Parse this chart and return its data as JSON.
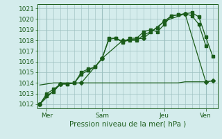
{
  "xlabel": "Pression niveau de la mer( hPa )",
  "bg_color": "#d4ecec",
  "grid_color": "#9bbfbf",
  "line_color": "#1a5c1a",
  "text_color": "#1a5c1a",
  "ylim": [
    1011.6,
    1021.4
  ],
  "xlim": [
    -0.3,
    25.7
  ],
  "day_labels": [
    "Mer",
    "Sam",
    "Jeu",
    "Ven"
  ],
  "day_positions": [
    1,
    9,
    18,
    24
  ],
  "series1_x": [
    0,
    1,
    2,
    3,
    4,
    5,
    6,
    7,
    8,
    9,
    10,
    11,
    12,
    13,
    14,
    15,
    16,
    17,
    18,
    19,
    20,
    21,
    22,
    23,
    24
  ],
  "series1_y": [
    1012.0,
    1012.8,
    1013.2,
    1013.9,
    1013.9,
    1014.0,
    1015.0,
    1015.3,
    1015.5,
    1016.3,
    1018.2,
    1018.2,
    1017.8,
    1018.2,
    1018.2,
    1018.8,
    1019.0,
    1018.8,
    1019.5,
    1020.3,
    1020.4,
    1020.5,
    1020.3,
    1019.5,
    1017.5
  ],
  "series2_x": [
    0,
    1,
    2,
    3,
    4,
    5,
    6,
    7,
    8,
    9,
    10,
    11,
    12,
    13,
    14,
    15,
    16,
    17,
    18,
    19,
    20,
    21,
    22,
    23,
    24,
    25
  ],
  "series2_y": [
    1012.0,
    1013.0,
    1013.4,
    1013.9,
    1013.9,
    1014.0,
    1014.8,
    1015.2,
    1015.5,
    1016.3,
    1018.1,
    1018.2,
    1017.9,
    1018.0,
    1018.0,
    1018.5,
    1018.8,
    1019.2,
    1019.8,
    1020.3,
    1020.4,
    1020.5,
    1020.6,
    1020.2,
    1018.3,
    1016.5
  ],
  "series3_x": [
    0,
    3,
    6,
    9,
    12,
    15,
    18,
    21,
    24,
    25
  ],
  "series3_y": [
    1012.0,
    1013.9,
    1014.0,
    1016.3,
    1018.0,
    1018.2,
    1019.8,
    1020.5,
    1014.1,
    1014.2
  ],
  "series4_x": [
    0,
    1,
    2,
    3,
    4,
    5,
    6,
    7,
    8,
    9,
    10,
    11,
    12,
    13,
    14,
    15,
    16,
    17,
    18,
    19,
    20,
    21,
    22,
    23,
    24,
    25
  ],
  "series4_y": [
    1013.8,
    1013.9,
    1014.0,
    1014.0,
    1014.0,
    1014.0,
    1014.0,
    1014.0,
    1014.0,
    1014.0,
    1014.0,
    1014.0,
    1014.0,
    1014.0,
    1014.0,
    1014.0,
    1014.0,
    1014.0,
    1014.0,
    1014.0,
    1014.0,
    1014.1,
    1014.1,
    1014.1,
    1014.1,
    1014.2
  ],
  "yticks": [
    1012,
    1013,
    1014,
    1015,
    1016,
    1017,
    1018,
    1019,
    1020,
    1021
  ],
  "label_fontsize": 6.5,
  "xlabel_fontsize": 7.5
}
